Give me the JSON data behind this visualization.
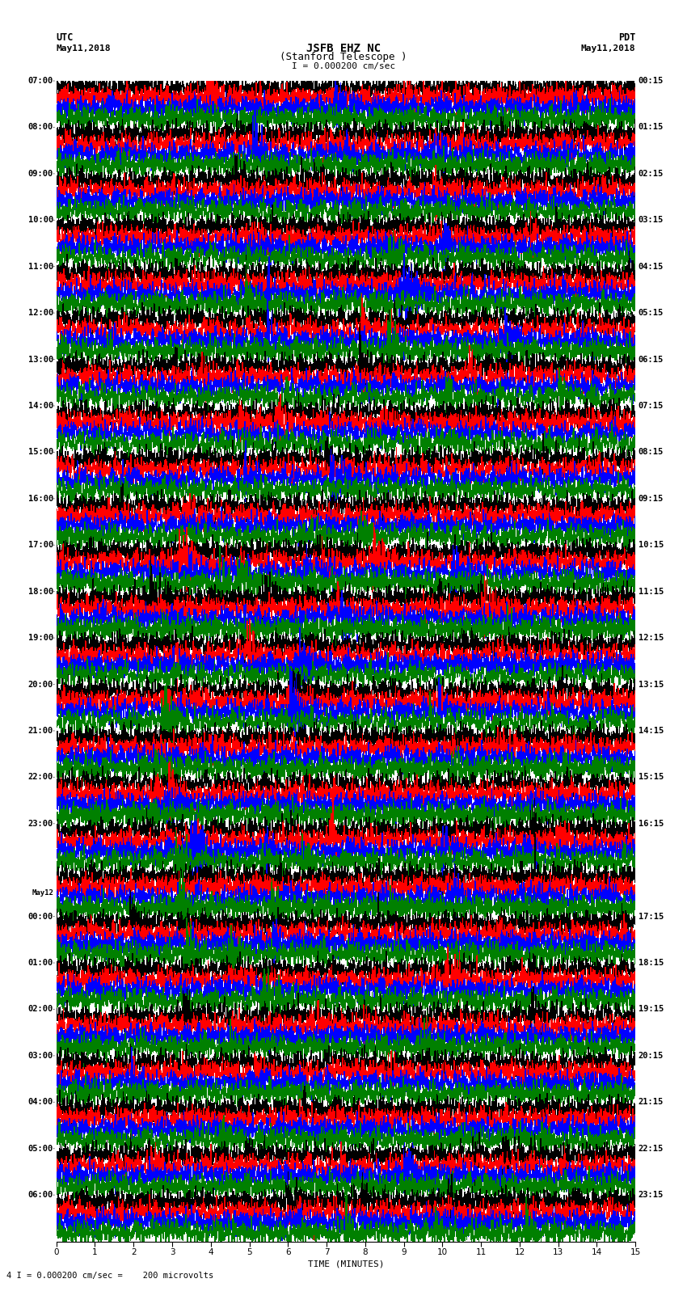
{
  "title_line1": "JSFB EHZ NC",
  "title_line2": "(Stanford Telescope )",
  "scale_label": "I = 0.000200 cm/sec",
  "bottom_label": "4 I = 0.000200 cm/sec =    200 microvolts",
  "xlabel": "TIME (MINUTES)",
  "left_label_top": "UTC",
  "left_date": "May11,2018",
  "right_label_top": "PDT",
  "right_date": "May11,2018",
  "left_times": [
    "07:00",
    "08:00",
    "09:00",
    "10:00",
    "11:00",
    "12:00",
    "13:00",
    "14:00",
    "15:00",
    "16:00",
    "17:00",
    "18:00",
    "19:00",
    "20:00",
    "21:00",
    "22:00",
    "23:00",
    "May12",
    "00:00",
    "01:00",
    "02:00",
    "03:00",
    "04:00",
    "05:00",
    "06:00"
  ],
  "right_times": [
    "00:15",
    "01:15",
    "02:15",
    "03:15",
    "04:15",
    "05:15",
    "06:15",
    "07:15",
    "08:15",
    "09:15",
    "10:15",
    "11:15",
    "12:15",
    "13:15",
    "14:15",
    "15:15",
    "16:15",
    "17:15",
    "18:15",
    "19:15",
    "20:15",
    "21:15",
    "22:15",
    "23:15"
  ],
  "colors": [
    "black",
    "red",
    "blue",
    "green"
  ],
  "bg_color": "white",
  "trace_linewidth": 0.4,
  "n_rows": 25,
  "traces_per_row": 4,
  "xlim": [
    0,
    15
  ],
  "xticks": [
    0,
    1,
    2,
    3,
    4,
    5,
    6,
    7,
    8,
    9,
    10,
    11,
    12,
    13,
    14,
    15
  ],
  "fig_width": 8.5,
  "fig_height": 16.13
}
